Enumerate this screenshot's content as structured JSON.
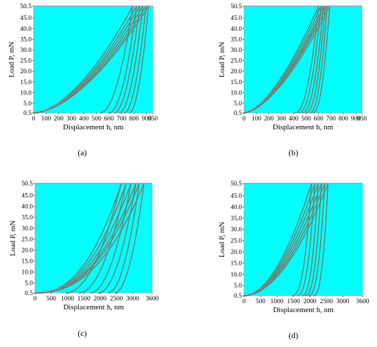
{
  "colors": {
    "plot_bg": "#00FFFF",
    "curve": "#3C7A3C",
    "band": "#9C9CC8",
    "marker": "#E03030"
  },
  "chart_data": [
    {
      "type": "line",
      "panel_label": "(a)",
      "xlabel": "Displacement h, nm",
      "ylabel": "Load P, mN",
      "xlim": [
        0,
        950
      ],
      "ylim": [
        0.5,
        50.5
      ],
      "xticks": [
        "0",
        "100",
        "200",
        "300",
        "400",
        "500",
        "600",
        "700",
        "800",
        "900",
        "950"
      ],
      "yticks": [
        "0.5",
        "5.0",
        "10.0",
        "15.0",
        "20.0",
        "25.0",
        "30.0",
        "35.0",
        "40.0",
        "45.0",
        "50.5"
      ],
      "grid": false,
      "loading": {
        "h_max": [
          790,
          820,
          845,
          870,
          895,
          915
        ],
        "exponent": 1.7
      },
      "unloading": {
        "h_final": [
          530,
          600,
          640,
          680,
          720,
          760
        ],
        "exponent": 2.0
      }
    },
    {
      "type": "line",
      "panel_label": "(b)",
      "xlabel": "Displacement h, nm",
      "ylabel": "Load P, mN",
      "xlim": [
        0,
        950
      ],
      "ylim": [
        0.5,
        50.5
      ],
      "xticks": [
        "0",
        "100",
        "200",
        "300",
        "400",
        "500",
        "600",
        "700",
        "800",
        "900",
        "950"
      ],
      "yticks": [
        "0.5",
        "5.0",
        "10.0",
        "15.0",
        "20.0",
        "25.0",
        "30.0",
        "35.0",
        "40.0",
        "45.0",
        "50.5"
      ],
      "grid": false,
      "loading": {
        "h_max": [
          600,
          620,
          640,
          655,
          670,
          690
        ],
        "exponent": 1.6
      },
      "unloading": {
        "h_final": [
          410,
          440,
          470,
          500,
          530,
          555
        ],
        "exponent": 2.2
      }
    },
    {
      "type": "line",
      "panel_label": "(c)",
      "xlabel": "Displacement h, nm",
      "ylabel": "Load P, mN",
      "xlim": [
        0,
        3600
      ],
      "ylim": [
        0.5,
        50.5
      ],
      "xticks": [
        "0",
        "500",
        "1000",
        "1500",
        "2000",
        "2500",
        "3000",
        "3600"
      ],
      "yticks": [
        "0.5",
        "5.0",
        "10.0",
        "15.0",
        "20.0",
        "25.0",
        "30.0",
        "35.0",
        "40.0",
        "45.0",
        "50.5"
      ],
      "grid": false,
      "loading": {
        "h_max": [
          2650,
          2800,
          2950,
          3100,
          3200,
          3350
        ],
        "exponent": 2.4
      },
      "unloading": {
        "h_final": [
          950,
          1350,
          1700,
          1950,
          2250,
          2450
        ],
        "exponent": 2.0
      }
    },
    {
      "type": "line",
      "panel_label": "(d)",
      "xlabel": "Displacement h, nm",
      "ylabel": "Load P, mN",
      "xlim": [
        0,
        3600
      ],
      "ylim": [
        0.5,
        50.5
      ],
      "xticks": [
        "0",
        "500",
        "1000",
        "1500",
        "2000",
        "2500",
        "3000",
        "3600"
      ],
      "yticks": [
        "0.5",
        "5.0",
        "10.0",
        "15.0",
        "20.0",
        "25.0",
        "30.0",
        "35.0",
        "40.0",
        "45.0",
        "50.5"
      ],
      "grid": false,
      "loading": {
        "h_max": [
          2050,
          2150,
          2250,
          2350,
          2450,
          2550
        ],
        "exponent": 1.9
      },
      "unloading": {
        "h_final": [
          1450,
          1600,
          1750,
          1850,
          1950,
          2100
        ],
        "exponent": 2.6
      }
    }
  ]
}
